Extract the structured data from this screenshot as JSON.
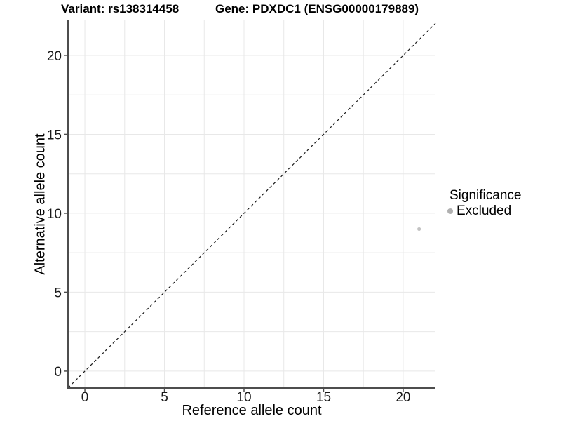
{
  "figure": {
    "title_variant": "Variant: rs138314458",
    "title_gene": "Gene: PDXDC1 (ENSG00000179889)"
  },
  "legend": {
    "title": "Significance",
    "items": [
      {
        "label": "Excluded",
        "marker_color": "#b0b0b0"
      }
    ]
  },
  "chart_data": {
    "type": "scatter",
    "title": "Variant: rs138314458    Gene: PDXDC1 (ENSG00000179889)",
    "xlabel": "Reference allele count",
    "ylabel": "Alternative allele count",
    "xlim": [
      -1.06,
      22.03
    ],
    "ylim": [
      -1.07,
      22.22
    ],
    "x_ticks": [
      0,
      5,
      10,
      15,
      20
    ],
    "y_ticks": [
      0,
      5,
      10,
      15,
      20
    ],
    "minor_grid_step": 2.5,
    "grid": true,
    "legend_position": "right",
    "series": [
      {
        "name": "Excluded",
        "color": "#c2c2c2",
        "points": [
          [
            21,
            9
          ]
        ]
      }
    ],
    "reference_line": {
      "type": "identity",
      "equation": "y = x",
      "linestyle": "dashed"
    }
  },
  "colors": {
    "background": "#ffffff",
    "gridline": "#e8e8e8",
    "axis": "#4d4d4d",
    "reference_line": "#1a1a1a",
    "text": "#000000"
  }
}
